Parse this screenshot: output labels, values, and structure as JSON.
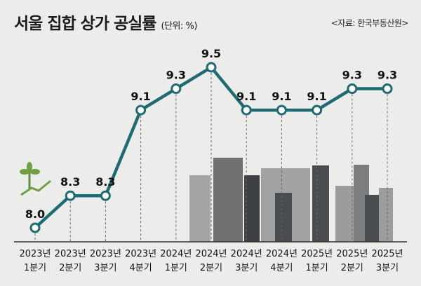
{
  "chart_data": {
    "type": "line",
    "title": "서울 집합 상가 공실률",
    "unit": "(단위: %)",
    "source": "<자료: 한국부동산원>",
    "categories": [
      [
        "2023년",
        "1분기"
      ],
      [
        "2023년",
        "2분기"
      ],
      [
        "2023년",
        "3분기"
      ],
      [
        "2023년",
        "4분기"
      ],
      [
        "2024년",
        "1분기"
      ],
      [
        "2024년",
        "2분기"
      ],
      [
        "2024년",
        "3분기"
      ],
      [
        "2024년",
        "4분기"
      ],
      [
        "2025년",
        "1분기"
      ],
      [
        "2025년",
        "2분기"
      ],
      [
        "2025년",
        "3분기"
      ]
    ],
    "values": [
      8.0,
      8.3,
      8.3,
      9.1,
      9.3,
      9.5,
      9.1,
      9.1,
      9.1,
      9.3,
      9.3
    ],
    "data_labels": [
      "8.0",
      "8.3",
      "8.3",
      "9.1",
      "9.3",
      "9.5",
      "9.1",
      "9.1",
      "9.1",
      "9.3",
      "9.3"
    ],
    "ylim": [
      7.9,
      9.6
    ],
    "grid": false,
    "colors": {
      "line": "#1f6b73",
      "marker_fill": "#ffffff",
      "background": "#ecedeb",
      "buildings": "#8a8c8d"
    }
  }
}
